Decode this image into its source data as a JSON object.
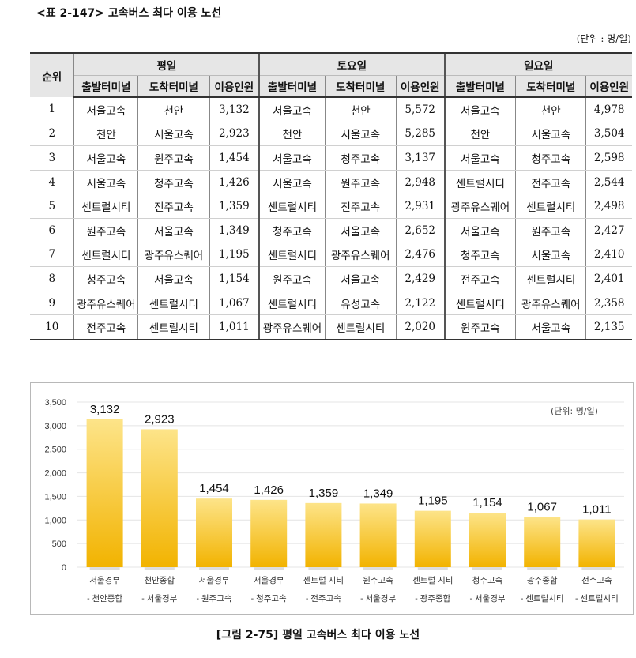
{
  "table_title": "<표 2-147> 고속버스 최다 이용 노선",
  "unit_note": "(단위 : 명/일)",
  "table": {
    "rank_header": "순위",
    "groups": [
      "평일",
      "토요일",
      "일요일"
    ],
    "sub_headers": [
      "출발터미널",
      "도착터미널",
      "이용인원"
    ],
    "rows": [
      {
        "rank": "1",
        "weekday": [
          "서울고속",
          "천안",
          "3,132"
        ],
        "saturday": [
          "서울고속",
          "천안",
          "5,572"
        ],
        "sunday": [
          "서울고속",
          "천안",
          "4,978"
        ]
      },
      {
        "rank": "2",
        "weekday": [
          "천안",
          "서울고속",
          "2,923"
        ],
        "saturday": [
          "천안",
          "서울고속",
          "5,285"
        ],
        "sunday": [
          "천안",
          "서울고속",
          "3,504"
        ]
      },
      {
        "rank": "3",
        "weekday": [
          "서울고속",
          "원주고속",
          "1,454"
        ],
        "saturday": [
          "서울고속",
          "청주고속",
          "3,137"
        ],
        "sunday": [
          "서울고속",
          "청주고속",
          "2,598"
        ]
      },
      {
        "rank": "4",
        "weekday": [
          "서울고속",
          "청주고속",
          "1,426"
        ],
        "saturday": [
          "서울고속",
          "원주고속",
          "2,948"
        ],
        "sunday": [
          "센트럴시티",
          "전주고속",
          "2,544"
        ]
      },
      {
        "rank": "5",
        "weekday": [
          "센트럴시티",
          "전주고속",
          "1,359"
        ],
        "saturday": [
          "센트럴시티",
          "전주고속",
          "2,931"
        ],
        "sunday": [
          "광주유스퀘어",
          "센트럴시티",
          "2,498"
        ]
      },
      {
        "rank": "6",
        "weekday": [
          "원주고속",
          "서울고속",
          "1,349"
        ],
        "saturday": [
          "청주고속",
          "서울고속",
          "2,652"
        ],
        "sunday": [
          "서울고속",
          "원주고속",
          "2,427"
        ]
      },
      {
        "rank": "7",
        "weekday": [
          "센트럴시티",
          "광주유스퀘어",
          "1,195"
        ],
        "saturday": [
          "센트럴시티",
          "광주유스퀘어",
          "2,476"
        ],
        "sunday": [
          "청주고속",
          "서울고속",
          "2,410"
        ]
      },
      {
        "rank": "8",
        "weekday": [
          "청주고속",
          "서울고속",
          "1,154"
        ],
        "saturday": [
          "원주고속",
          "서울고속",
          "2,429"
        ],
        "sunday": [
          "전주고속",
          "센트럴시티",
          "2,401"
        ]
      },
      {
        "rank": "9",
        "weekday": [
          "광주유스퀘어",
          "센트럴시티",
          "1,067"
        ],
        "saturday": [
          "센트럴시티",
          "유성고속",
          "2,122"
        ],
        "sunday": [
          "센트럴시티",
          "광주유스퀘어",
          "2,358"
        ]
      },
      {
        "rank": "10",
        "weekday": [
          "전주고속",
          "센트럴시티",
          "1,011"
        ],
        "saturday": [
          "광주유스퀘어",
          "센트럴시티",
          "2,020"
        ],
        "sunday": [
          "원주고속",
          "서울고속",
          "2,135"
        ]
      }
    ]
  },
  "chart_data": {
    "type": "bar",
    "categories": [
      [
        "서울경부",
        "- 천안종합"
      ],
      [
        "천안종합",
        "- 서울경부"
      ],
      [
        "서울경부",
        "- 원주고속"
      ],
      [
        "서울경부",
        "- 청주고속"
      ],
      [
        "센트럴 시티",
        "- 전주고속"
      ],
      [
        "원주고속",
        "- 서울경부"
      ],
      [
        "센트럴 시티",
        "- 광주종합"
      ],
      [
        "청주고속",
        "- 서울경부"
      ],
      [
        "광주종합",
        "- 센트럴시티"
      ],
      [
        "전주고속",
        "- 센트럴시티"
      ]
    ],
    "values": [
      3132,
      2923,
      1454,
      1426,
      1359,
      1349,
      1195,
      1154,
      1067,
      1011
    ],
    "value_labels": [
      "3,132",
      "2,923",
      "1,454",
      "1,426",
      "1,359",
      "1,349",
      "1,195",
      "1,154",
      "1,067",
      "1,011"
    ],
    "yticks": [
      "3,500",
      "3,000",
      "2,500",
      "2,000",
      "1,500",
      "1,000",
      "500",
      "0"
    ],
    "ylim": [
      0,
      3500
    ],
    "unit_label": "(단위: 명/일)",
    "bar_color": "#f2b300",
    "bar_color_light": "#fde489",
    "grid": true
  },
  "caption": "[그림 2-75] 평일 고속버스 최다 이용 노선"
}
